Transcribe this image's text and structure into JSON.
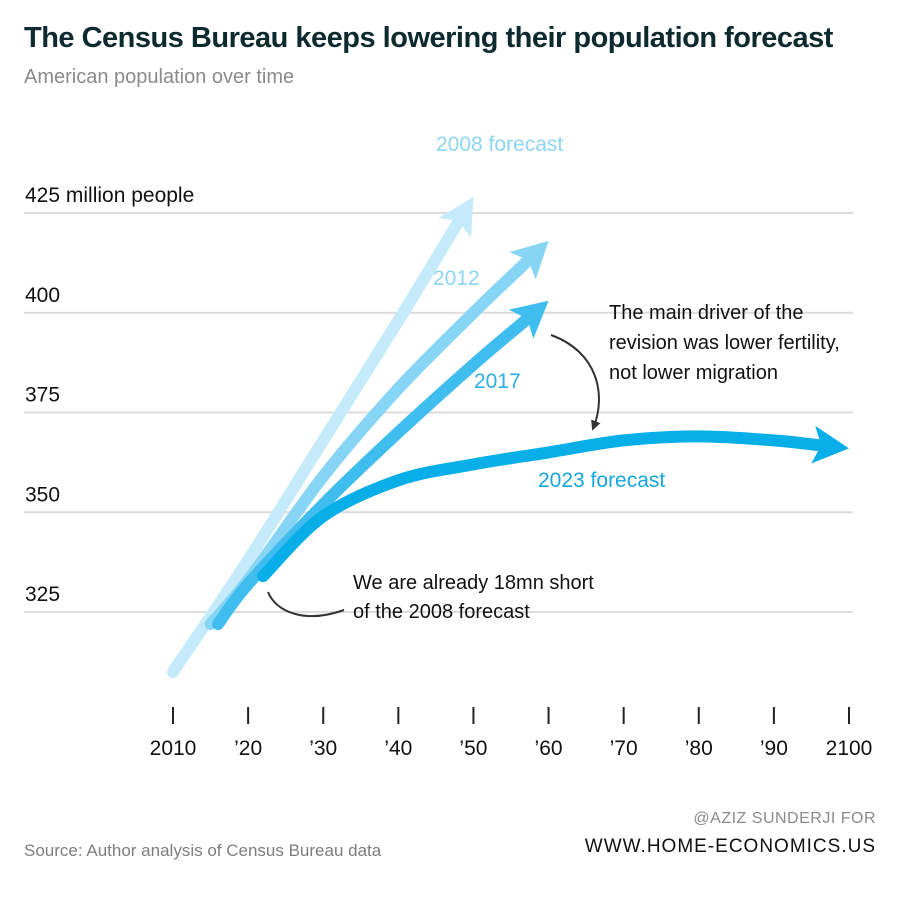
{
  "header": {
    "title": "The Census Bureau keeps lowering their population forecast",
    "subtitle": "American population over time"
  },
  "footer": {
    "source": "Source: Author analysis of Census Bureau data",
    "credit_line1": "@AZIZ SUNDERJI FOR",
    "credit_line2": "WWW.HOME-ECONOMICS.US"
  },
  "colors": {
    "forecast_2008": "#c5ebfa",
    "forecast_2012": "#86d5f5",
    "forecast_2017": "#3fbdee",
    "forecast_2023": "#07aee8",
    "label_2008": "#8dd6f3",
    "label_2012": "#8dd6f3",
    "label_2017": "#2eaee4",
    "label_2023": "#16a6df",
    "gridline": "#dcdcdc",
    "annotation_arrow": "#333333",
    "text": "#111111"
  },
  "chart_data": {
    "type": "line",
    "title": "The Census Bureau keeps lowering their population forecast",
    "subtitle": "American population over time",
    "xlabel": "",
    "ylabel": "",
    "xlim": [
      2010,
      2100
    ],
    "ylim": [
      300,
      430
    ],
    "x_ticks": [
      2010,
      2020,
      2030,
      2040,
      2050,
      2060,
      2070,
      2080,
      2090,
      2100
    ],
    "x_tick_labels": [
      "2010",
      "’20",
      "’30",
      "’40",
      "’50",
      "’60",
      "’70",
      "’80",
      "’90",
      "2100"
    ],
    "y_ticks": [
      325,
      350,
      375,
      400,
      425
    ],
    "y_tick_labels": [
      "325",
      "350",
      "375",
      "400",
      "425 million people"
    ],
    "grid": true,
    "series": [
      {
        "name": "2008 forecast",
        "color": "#c5ebfa",
        "x": [
          2010,
          2020,
          2030,
          2040,
          2050
        ],
        "values": [
          310,
          338,
          368,
          398,
          429
        ]
      },
      {
        "name": "2012",
        "color": "#86d5f5",
        "x": [
          2015,
          2020,
          2030,
          2040,
          2050,
          2060
        ],
        "values": [
          322,
          333,
          359,
          381,
          400,
          418
        ]
      },
      {
        "name": "2017",
        "color": "#3fbdee",
        "x": [
          2016,
          2020,
          2030,
          2040,
          2050,
          2060
        ],
        "values": [
          322,
          332,
          352,
          370,
          387,
          403
        ]
      },
      {
        "name": "2023 forecast",
        "color": "#07aee8",
        "x": [
          2022,
          2030,
          2040,
          2050,
          2060,
          2070,
          2080,
          2090,
          2100
        ],
        "values": [
          334,
          349,
          358,
          362,
          365,
          368,
          369,
          368,
          366
        ]
      }
    ],
    "annotations": [
      {
        "id": "fertility",
        "lines": [
          "The main driver of the",
          "revision was lower fertility,",
          "not lower migration"
        ]
      },
      {
        "id": "short",
        "lines": [
          "We are already 18mn short",
          "of the 2008 forecast"
        ]
      }
    ]
  }
}
